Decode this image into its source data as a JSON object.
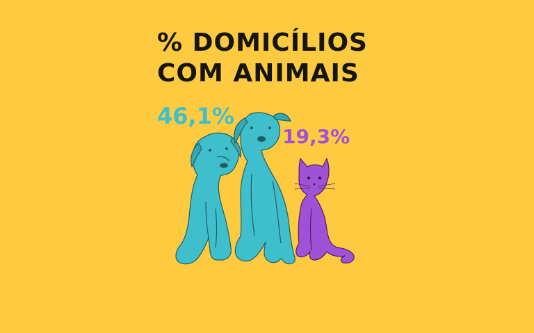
{
  "title": {
    "line1": "% DOMICÍLIOS",
    "line2": "COM ANIMAIS"
  },
  "stats": {
    "dogs": "46,1%",
    "cats": "19,3%"
  },
  "colors": {
    "background": "#fdca40",
    "dogs": "#3fbfcb",
    "cats": "#a052d6",
    "text": "#151515"
  }
}
